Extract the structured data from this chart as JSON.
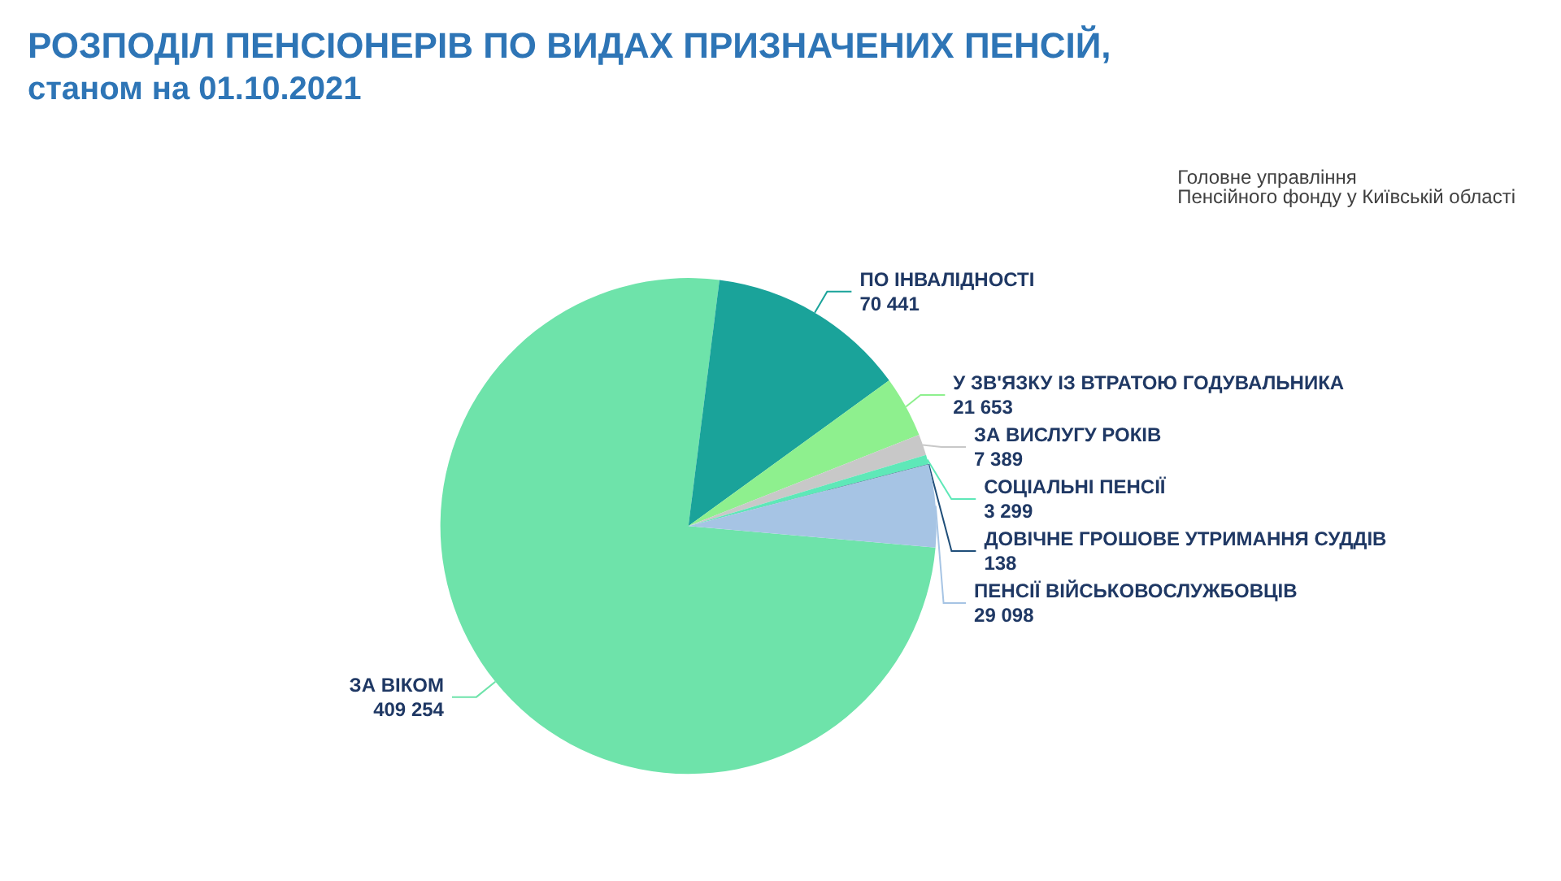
{
  "chart_data": {
    "type": "pie",
    "title": "РОЗПОДІЛ ПЕНСІОНЕРІВ ПО ВИДАХ ПРИЗНАЧЕНИХ ПЕНСІЙ,",
    "subtitle": "станом на 01.10.2021",
    "annotations": [
      "Головне управління\nПенсійного фонду у Київській області"
    ],
    "categories": [
      "ЗА ВІКОМ",
      "ПО ІНВАЛІДНОСТІ",
      "У ЗВ'ЯЗКУ ІЗ ВТРАТОЮ ГОДУВАЛЬНИКА",
      "ЗА ВИСЛУГУ РОКІВ",
      "СОЦІАЛЬНІ ПЕНСІЇ",
      "ДОВІЧНЕ ГРОШОВЕ УТРИМАННЯ СУДДІВ",
      "ПЕНСІЇ ВІЙСЬКОВОСЛУЖБОВЦІВ"
    ],
    "values": [
      409254,
      70441,
      21653,
      7389,
      3299,
      138,
      29098
    ],
    "colors": [
      "#6ee3aa",
      "#1aa39a",
      "#8ef08e",
      "#c8c8c8",
      "#5ee8b8",
      "#1f4e79",
      "#a6c4e4"
    ],
    "data_labels": true,
    "legend": false
  }
}
